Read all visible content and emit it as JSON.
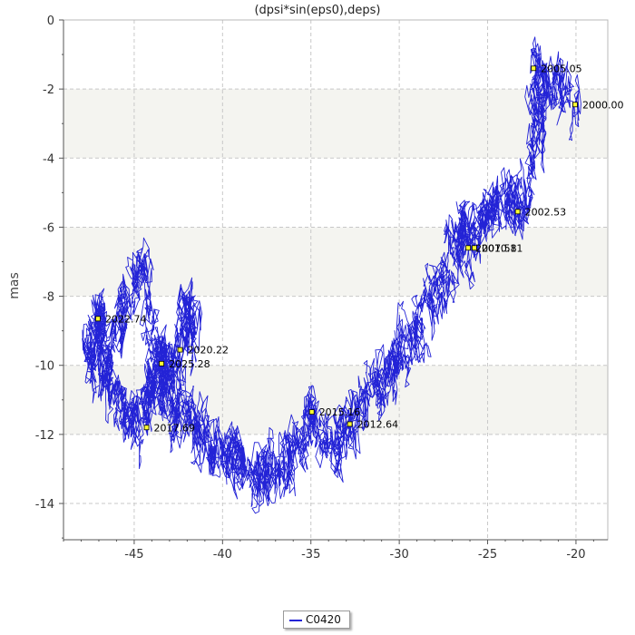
{
  "chart_data": {
    "type": "line",
    "title": "(dpsi*sin(eps0),deps)",
    "xlabel": "",
    "ylabel": "mas",
    "xlim": [
      -49,
      -18.2
    ],
    "ylim": [
      -15.05,
      0
    ],
    "xticks": [
      -45,
      -40,
      -35,
      -30,
      -25,
      -20
    ],
    "yticks": [
      0,
      -2,
      -4,
      -6,
      -8,
      -10,
      -12,
      -14
    ],
    "grid": true,
    "banded_y_ranges": [
      [
        -4,
        -2
      ],
      [
        -8,
        -6
      ],
      [
        -12,
        -10
      ]
    ],
    "legend_position": "bottom-center",
    "colors": {
      "series": "#2323d6",
      "band": "#f4f4f0",
      "grid": "#c8c8c8",
      "marker_fill": "#ffff33"
    },
    "series": [
      {
        "name": "C0420",
        "description_points_x": [
          -20.0,
          -21.2,
          -22.4,
          -22.0,
          -23.0,
          -24.0,
          -25.0,
          -25.8,
          -26.5,
          -27.5,
          -28.5,
          -29.5,
          -30.5,
          -31.5,
          -32.8,
          -33.8,
          -35.0,
          -36.0,
          -37.0,
          -38.0,
          -39.0,
          -40.0,
          -41.0,
          -42.0,
          -43.0,
          -43.5,
          -44.5,
          -45.5,
          -46.5,
          -47.0,
          -47.5,
          -46.5,
          -45.5,
          -44.5,
          -44.0,
          -43.5,
          -42.5,
          -42.0,
          -41.5
        ],
        "description_points_y": [
          -2.5,
          -2.0,
          -1.4,
          -3.0,
          -5.5,
          -5.0,
          -5.5,
          -6.6,
          -6.0,
          -7.5,
          -8.5,
          -9.5,
          -10.2,
          -10.8,
          -11.7,
          -12.3,
          -11.3,
          -12.8,
          -13.0,
          -13.2,
          -12.8,
          -12.5,
          -12.2,
          -11.5,
          -11.0,
          -9.9,
          -7.0,
          -8.5,
          -9.5,
          -8.7,
          -9.6,
          -10.5,
          -11.5,
          -11.6,
          -10.5,
          -10.0,
          -9.8,
          -8.3,
          -9.3
        ]
      }
    ],
    "annotations": [
      {
        "label": "2000.00",
        "x": -20.05,
        "y": -2.45
      },
      {
        "label": "2005.05",
        "x": -22.4,
        "y": -1.4
      },
      {
        "label": "2007.58",
        "x": -26.1,
        "y": -6.6
      },
      {
        "label": "2010.11",
        "x": -25.75,
        "y": -6.6
      },
      {
        "label": "2002.53",
        "x": -23.3,
        "y": -5.55
      },
      {
        "label": "2012.64",
        "x": -32.8,
        "y": -11.7
      },
      {
        "label": "2015.16",
        "x": -34.95,
        "y": -11.35
      },
      {
        "label": "2017.69",
        "x": -44.3,
        "y": -11.8
      },
      {
        "label": "2020.22",
        "x": -42.4,
        "y": -9.55
      },
      {
        "label": "2022.74",
        "x": -47.05,
        "y": -8.65
      },
      {
        "label": "2025.28",
        "x": -43.45,
        "y": -9.95
      }
    ]
  },
  "legend": {
    "label": "C0420"
  }
}
